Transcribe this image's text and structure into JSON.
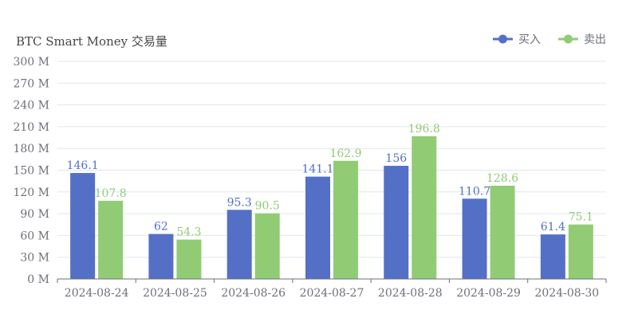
{
  "chart_data": {
    "type": "bar",
    "title": "BTC Smart Money 交易量",
    "categories": [
      "2024-08-24",
      "2024-08-25",
      "2024-08-26",
      "2024-08-27",
      "2024-08-28",
      "2024-08-29",
      "2024-08-30"
    ],
    "series": [
      {
        "name": "买入",
        "color": "#5470c6",
        "values": [
          146.1,
          62,
          95.3,
          141.1,
          156,
          110.7,
          61.4
        ]
      },
      {
        "name": "卖出",
        "color": "#91cc75",
        "values": [
          107.8,
          54.3,
          90.5,
          162.9,
          196.8,
          128.6,
          75.1
        ]
      }
    ],
    "y_ticks": [
      "0 M",
      "30 M",
      "60 M",
      "90 M",
      "120 M",
      "150 M",
      "180 M",
      "210 M",
      "240 M",
      "270 M",
      "300 M"
    ],
    "ylim": [
      0,
      300
    ],
    "grid": true,
    "legend_position": "top-right",
    "colors": {
      "axis": "#6e7079",
      "grid": "#e0e6f1",
      "text": "#6e7079",
      "title": "#464646"
    }
  }
}
